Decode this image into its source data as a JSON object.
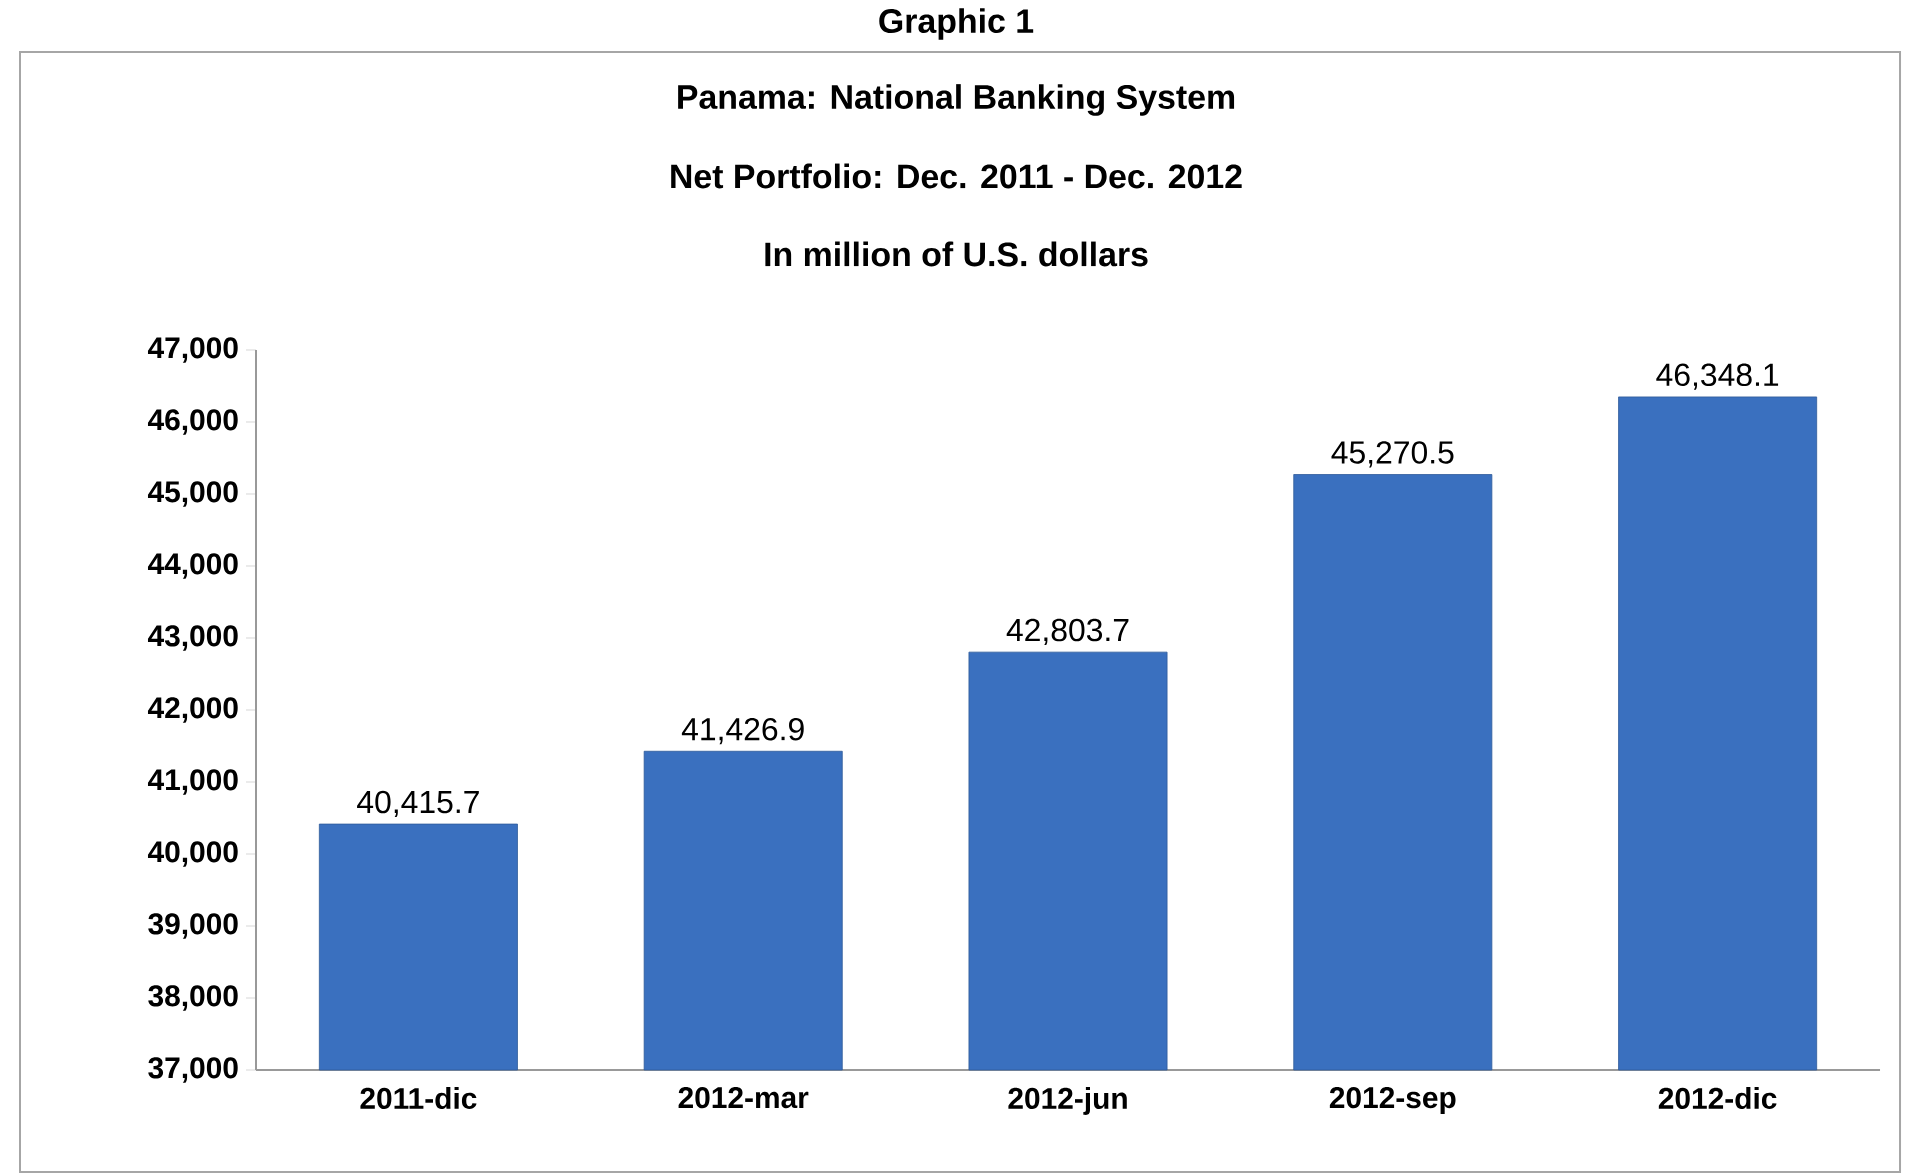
{
  "chart_data": {
    "type": "bar",
    "title": "Panama: National Banking System",
    "subtitle": "Net Portfolio: Dec. 2011 - Dec. 2012",
    "annotations": [
      "Graphic 1",
      "In million of U.S. dollars"
    ],
    "categories": [
      "2011-dic",
      "2012-mar",
      "2012-jun",
      "2012-sep",
      "2012-dic"
    ],
    "values": [
      40415.7,
      41426.9,
      42803.7,
      45270.5,
      46348.1
    ],
    "value_labels": [
      "40,415.7",
      "41,426.9",
      "42,803.7",
      "45,270.5",
      "46,348.1"
    ],
    "color": "#3a70bf",
    "ylim": [
      37000,
      47000
    ],
    "yticks": [
      {
        "value": 37000,
        "label": "37,000"
      },
      {
        "value": 38000,
        "label": "38,000"
      },
      {
        "value": 39000,
        "label": "39,000"
      },
      {
        "value": 40000,
        "label": "40,000"
      },
      {
        "value": 41000,
        "label": "41,000"
      },
      {
        "value": 42000,
        "label": "42,000"
      },
      {
        "value": 43000,
        "label": "43,000"
      },
      {
        "value": 44000,
        "label": "44,000"
      },
      {
        "value": 45000,
        "label": "45,000"
      },
      {
        "value": 46000,
        "label": "46,000"
      },
      {
        "value": 47000,
        "label": "47,000"
      }
    ]
  }
}
